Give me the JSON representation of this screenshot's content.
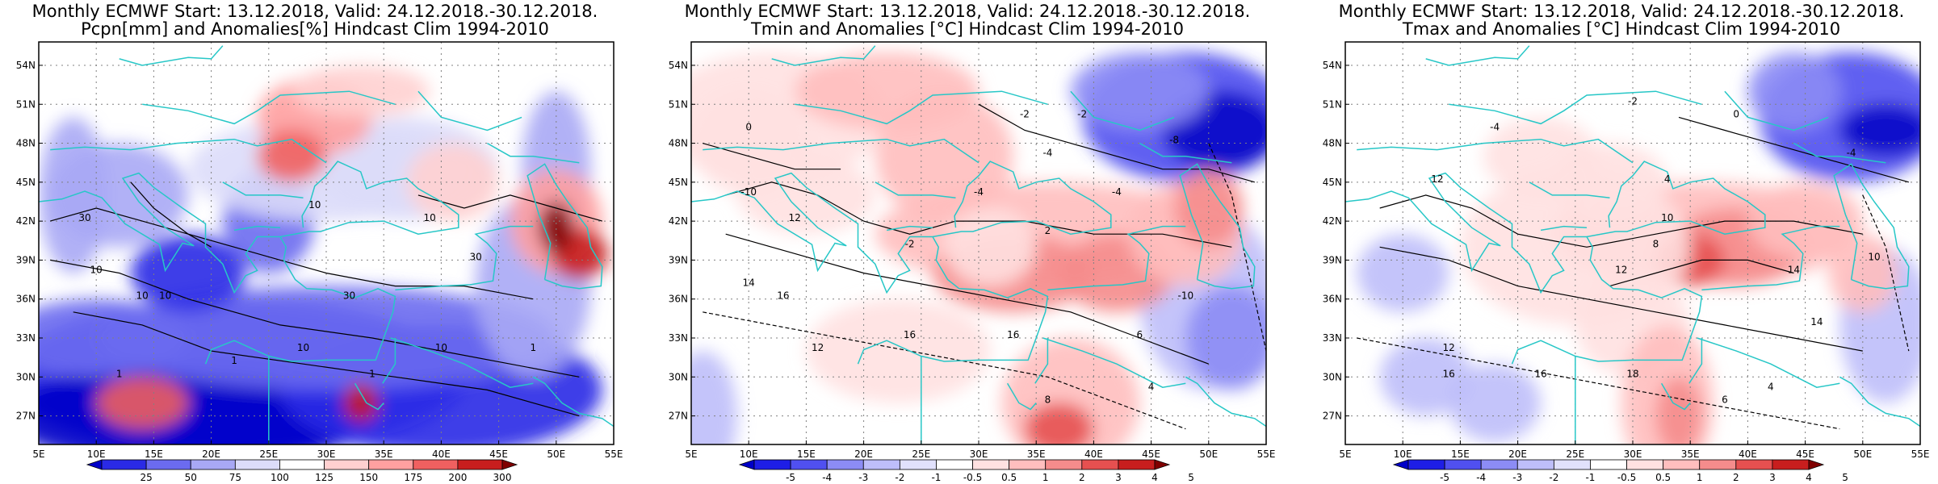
{
  "panels": [
    {
      "title_line1": "Monthly ECMWF Start: 13.12.2018, Valid: 24.12.2018.-30.12.2018.",
      "title_line2": "Pcpn[mm] and Anomalies[%] Hindcast Clim 1994-2010",
      "colorbar_labels": [
        "25",
        "50",
        "75",
        "100",
        "125",
        "150",
        "175",
        "200",
        "300"
      ],
      "colorbar_colors": [
        "#0000c8",
        "#2a2ae6",
        "#6b6bf0",
        "#a8a8f5",
        "#dcdcfa",
        "#ffffff",
        "#ffd0d0",
        "#ffa0a0",
        "#f06060",
        "#c81e1e",
        "#800000"
      ],
      "contour_labels": [
        "10",
        "10",
        "30",
        "30",
        "10",
        "10",
        "10",
        "30",
        "1",
        "1",
        "1",
        "10",
        "10",
        "1"
      ]
    },
    {
      "title_line1": "Monthly ECMWF Start: 13.12.2018, Valid: 24.12.2018.-30.12.2018.",
      "title_line2": "Tmin and Anomalies [°C] Hindcast Clim 1994-2010",
      "colorbar_labels": [
        "-5",
        "-4",
        "-3",
        "-2",
        "-1",
        "-0.5",
        "0.5",
        "1",
        "2",
        "3",
        "4",
        "5"
      ],
      "colorbar_colors": [
        "#0000c8",
        "#1e1ee6",
        "#5050f0",
        "#8c8cf5",
        "#bebefa",
        "#e1e1fc",
        "#ffffff",
        "#ffe1e1",
        "#ffbebe",
        "#f58c8c",
        "#e65050",
        "#c81e1e",
        "#800000"
      ],
      "contour_labels": [
        "-2",
        "0",
        "-4",
        "-8",
        "-2",
        "-4",
        "-10",
        "-4",
        "2",
        "12",
        "16",
        "16",
        "12",
        "14",
        "16",
        "6",
        "8",
        "4",
        "-2",
        "-10"
      ]
    },
    {
      "title_line1": "Monthly ECMWF Start: 13.12.2018, Valid: 24.12.2018.-30.12.2018.",
      "title_line2": "Tmax and Anomalies [°C] Hindcast Clim 1994-2010",
      "colorbar_labels": [
        "-5",
        "-4",
        "-3",
        "-2",
        "-1",
        "-0.5",
        "0.5",
        "1",
        "2",
        "3",
        "4",
        "5"
      ],
      "colorbar_colors": [
        "#0000c8",
        "#1e1ee6",
        "#5050f0",
        "#8c8cf5",
        "#bebefa",
        "#e1e1fc",
        "#ffffff",
        "#ffe1e1",
        "#ffbebe",
        "#f58c8c",
        "#e65050",
        "#c81e1e",
        "#800000"
      ],
      "contour_labels": [
        "-4",
        "-2",
        "0",
        "-4",
        "4",
        "10",
        "12",
        "12",
        "8",
        "10",
        "14",
        "14",
        "18",
        "16",
        "16",
        "12",
        "4",
        "6"
      ]
    }
  ],
  "lat_labels": [
    "54N",
    "51N",
    "48N",
    "45N",
    "42N",
    "39N",
    "36N",
    "33N",
    "30N",
    "27N"
  ],
  "lon_labels": [
    "5E",
    "10E",
    "15E",
    "20E",
    "25E",
    "30E",
    "35E",
    "40E",
    "45E",
    "50E",
    "55E"
  ],
  "colors": {
    "coastline": "#27c7c7",
    "contour": "#000000",
    "grid": "#808080",
    "frame": "#000000"
  }
}
